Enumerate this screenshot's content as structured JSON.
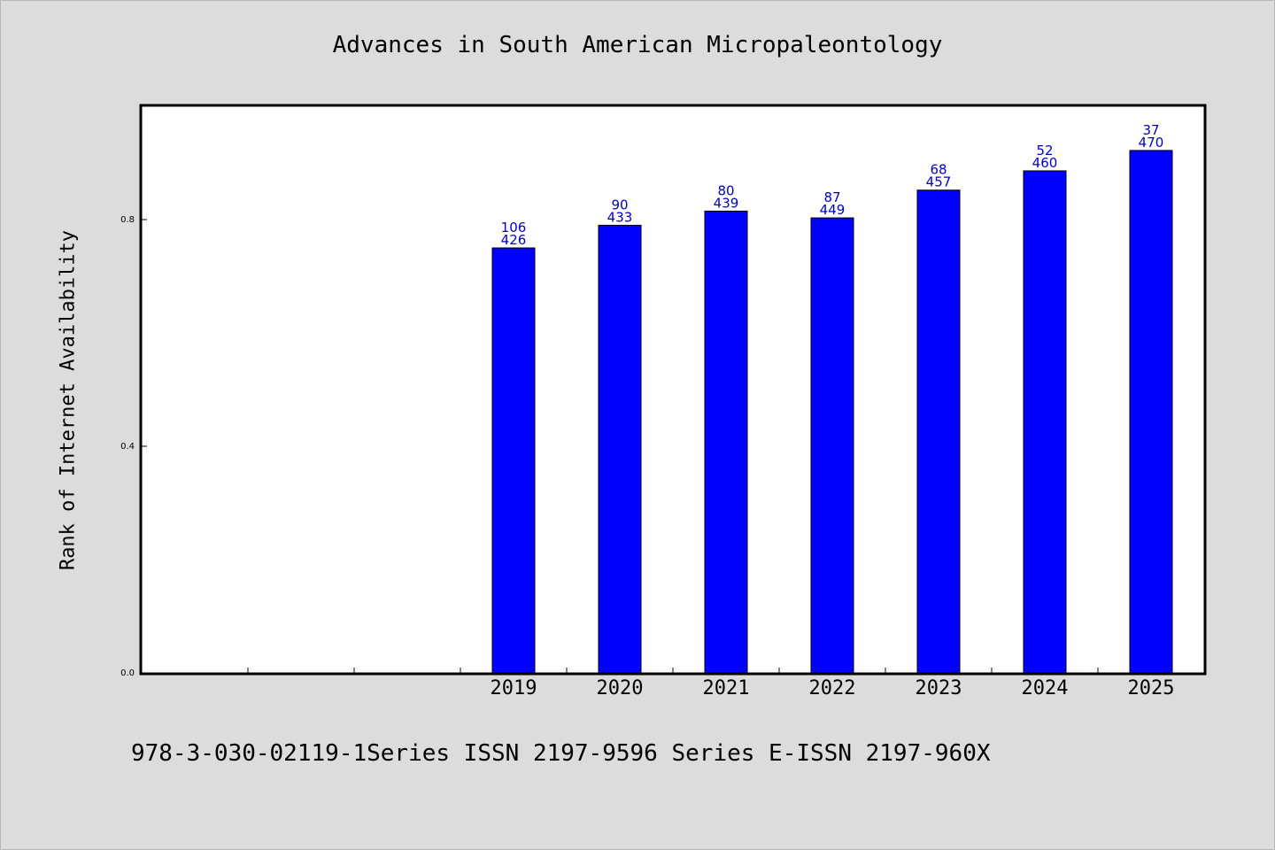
{
  "chart_data": {
    "type": "bar",
    "title": "Advances in South American Micropaleontology",
    "ylabel": "Rank of Internet Availability",
    "xlabel": "",
    "ylim": [
      0,
      1.0
    ],
    "yticks": [
      "0.0",
      "0.4",
      "0.8"
    ],
    "ytick_values": [
      0.0,
      0.4,
      0.8
    ],
    "category_slots": 10,
    "categories": [
      "2019",
      "2020",
      "2021",
      "2022",
      "2023",
      "2024",
      "2025"
    ],
    "values": [
      0.75,
      0.79,
      0.815,
      0.803,
      0.852,
      0.886,
      0.922
    ],
    "labels_top": [
      "106",
      "90",
      "80",
      "87",
      "68",
      "52",
      "37"
    ],
    "labels_bottom": [
      "426",
      "433",
      "439",
      "449",
      "457",
      "460",
      "470"
    ],
    "bar_color": "#0000ff",
    "label_color": "#0000cc",
    "grid": false
  },
  "footer": "978-3-030-02119-1Series ISSN 2197-9596 Series E-ISSN 2197-960X"
}
